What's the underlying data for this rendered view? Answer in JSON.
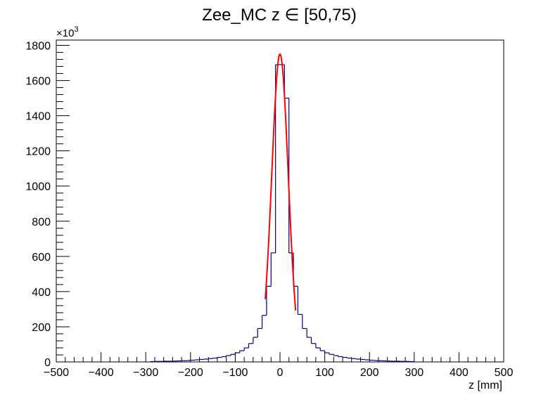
{
  "chart_data": {
    "type": "bar",
    "title": "Zee_MC z ∈ [50,75)",
    "xlabel": "z [mm]",
    "ylabel": "",
    "y_multiplier_label": "×10",
    "y_multiplier_exponent": "3",
    "xlim": [
      -500,
      500
    ],
    "ylim": [
      0,
      1830
    ],
    "x_ticks": [
      -500,
      -400,
      -300,
      -200,
      -100,
      0,
      100,
      200,
      300,
      400,
      500
    ],
    "x_tick_labels": [
      "−500",
      "−400",
      "−300",
      "−200",
      "−100",
      "0",
      "100",
      "200",
      "300",
      "400",
      "500"
    ],
    "y_ticks": [
      0,
      200,
      400,
      600,
      800,
      1000,
      1200,
      1400,
      1600,
      1800
    ],
    "y_tick_labels": [
      "0",
      "200",
      "400",
      "600",
      "800",
      "1000",
      "1200",
      "1400",
      "1600",
      "1800"
    ],
    "grid": false,
    "legend": "none",
    "histogram": {
      "bin_width": 10,
      "bin_low_edges": [
        -290,
        -280,
        -270,
        -260,
        -250,
        -240,
        -230,
        -220,
        -210,
        -200,
        -190,
        -180,
        -170,
        -160,
        -150,
        -140,
        -130,
        -120,
        -110,
        -100,
        -90,
        -80,
        -70,
        -60,
        -50,
        -40,
        -30,
        -20,
        -10,
        0,
        10,
        20,
        30,
        40,
        50,
        60,
        70,
        80,
        90,
        100,
        110,
        120,
        130,
        140,
        150,
        160,
        170,
        180,
        190,
        200,
        210,
        220,
        230,
        240,
        250,
        260,
        270,
        280,
        290
      ],
      "values": [
        2,
        3,
        3,
        4,
        4,
        5,
        6,
        7,
        8,
        10,
        12,
        14,
        16,
        19,
        22,
        26,
        30,
        36,
        43,
        52,
        64,
        80,
        105,
        140,
        190,
        265,
        430,
        620,
        1690,
        1690,
        1500,
        620,
        430,
        270,
        190,
        140,
        105,
        80,
        64,
        52,
        43,
        36,
        30,
        26,
        22,
        19,
        16,
        14,
        12,
        10,
        8,
        7,
        6,
        5,
        4,
        4,
        3,
        3,
        2
      ],
      "color": "#00007f"
    },
    "fit": {
      "x_range": [
        -33,
        35
      ],
      "mean": 0,
      "sigma": 18.5,
      "amplitude": 1750,
      "color": "#ff0000"
    }
  }
}
